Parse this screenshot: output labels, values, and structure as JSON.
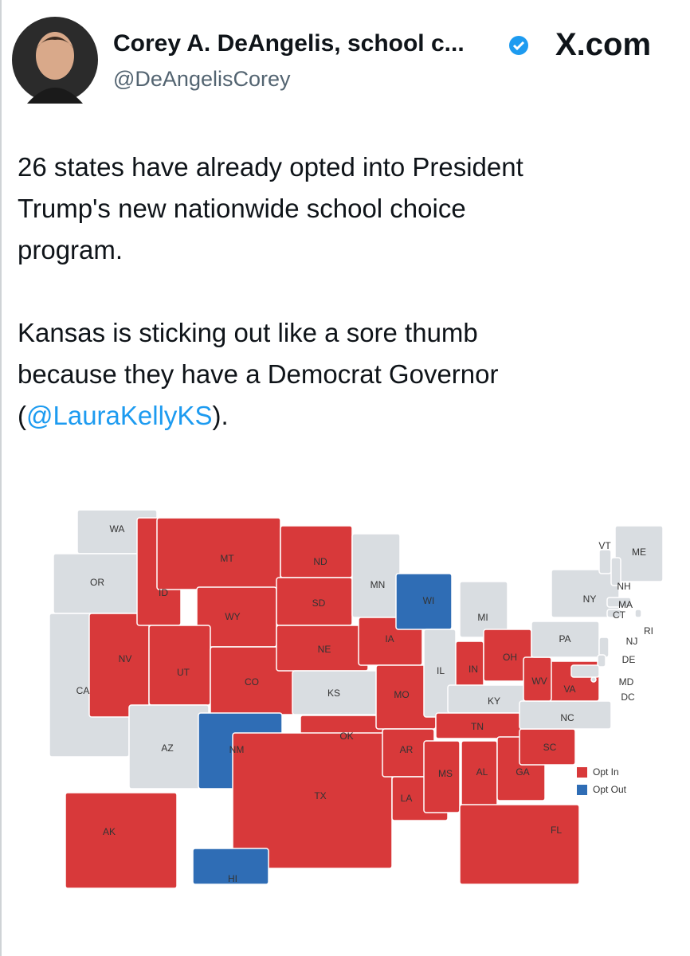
{
  "header": {
    "name": "Corey A. DeAngelis, school c...",
    "handle": "@DeAngelisCorey",
    "site": "X.com"
  },
  "tweet": {
    "paragraph1": [
      "26 states have already opted into President",
      "Trump's new nationwide school choice",
      "program."
    ],
    "paragraph2": [
      "Kansas is sticking out like a sore thumb",
      "because they have a Democrat Governor"
    ],
    "mention_line": [
      "(",
      "@LauraKellyKS",
      ")."
    ]
  },
  "map": {
    "legend": [
      {
        "label": "Opt In",
        "color": "#d8393a"
      },
      {
        "label": "Opt Out",
        "color": "#2f6db5"
      }
    ],
    "states": [
      {
        "label": "WA",
        "fill": "#d9dde1"
      },
      {
        "label": "OR",
        "fill": "#d9dde1"
      },
      {
        "label": "CA",
        "fill": "#d9dde1"
      },
      {
        "label": "NV",
        "fill": "#d8393a"
      },
      {
        "label": "ID",
        "fill": "#d8393a"
      },
      {
        "label": "MT",
        "fill": "#d8393a"
      },
      {
        "label": "WY",
        "fill": "#d8393a"
      },
      {
        "label": "UT",
        "fill": "#d8393a"
      },
      {
        "label": "CO",
        "fill": "#d8393a"
      },
      {
        "label": "AZ",
        "fill": "#d9dde1"
      },
      {
        "label": "NM",
        "fill": "#2f6db5"
      },
      {
        "label": "ND",
        "fill": "#d8393a"
      },
      {
        "label": "SD",
        "fill": "#d8393a"
      },
      {
        "label": "NE",
        "fill": "#d8393a"
      },
      {
        "label": "KS",
        "fill": "#d9dde1"
      },
      {
        "label": "OK",
        "fill": "#d8393a"
      },
      {
        "label": "TX",
        "fill": "#d8393a"
      },
      {
        "label": "MN",
        "fill": "#d9dde1"
      },
      {
        "label": "IA",
        "fill": "#d8393a"
      },
      {
        "label": "MO",
        "fill": "#d8393a"
      },
      {
        "label": "AR",
        "fill": "#d8393a"
      },
      {
        "label": "LA",
        "fill": "#d8393a"
      },
      {
        "label": "WI",
        "fill": "#2f6db5"
      },
      {
        "label": "IL",
        "fill": "#d9dde1"
      },
      {
        "label": "MI",
        "fill": "#d9dde1"
      },
      {
        "label": "IN",
        "fill": "#d8393a"
      },
      {
        "label": "OH",
        "fill": "#d8393a"
      },
      {
        "label": "KY",
        "fill": "#d9dde1"
      },
      {
        "label": "TN",
        "fill": "#d8393a"
      },
      {
        "label": "MS",
        "fill": "#d8393a"
      },
      {
        "label": "AL",
        "fill": "#d8393a"
      },
      {
        "label": "GA",
        "fill": "#d8393a"
      },
      {
        "label": "FL",
        "fill": "#d8393a"
      },
      {
        "label": "SC",
        "fill": "#d8393a"
      },
      {
        "label": "NC",
        "fill": "#d9dde1"
      },
      {
        "label": "VA",
        "fill": "#d8393a"
      },
      {
        "label": "WV",
        "fill": "#d8393a"
      },
      {
        "label": "PA",
        "fill": "#d9dde1"
      },
      {
        "label": "NY",
        "fill": "#d9dde1"
      },
      {
        "label": "ME",
        "fill": "#d9dde1"
      },
      {
        "label": "VT",
        "fill": "#d9dde1"
      },
      {
        "label": "NH",
        "fill": "#d9dde1"
      },
      {
        "label": "MA",
        "fill": "#d9dde1"
      },
      {
        "label": "CT",
        "fill": "#d9dde1"
      },
      {
        "label": "RI",
        "fill": "#d9dde1"
      },
      {
        "label": "NJ",
        "fill": "#d9dde1"
      },
      {
        "label": "DE",
        "fill": "#d9dde1"
      },
      {
        "label": "MD",
        "fill": "#d9dde1"
      },
      {
        "label": "DC",
        "fill": "#d9dde1"
      },
      {
        "label": "AK",
        "fill": "#d8393a"
      },
      {
        "label": "HI",
        "fill": "#2f6db5"
      }
    ]
  }
}
